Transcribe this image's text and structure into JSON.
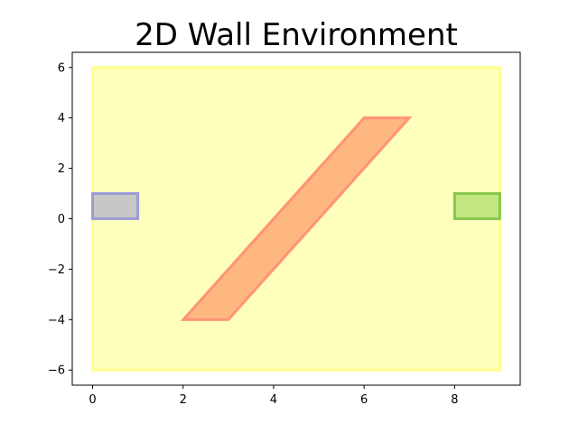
{
  "chart_data": {
    "type": "polygon",
    "title": "2D Wall Environment",
    "xlabel": "",
    "ylabel": "",
    "xlim": [
      -0.45,
      9.45
    ],
    "ylim": [
      -6.6,
      6.6
    ],
    "xticks": [
      0,
      2,
      4,
      6,
      8
    ],
    "yticks": [
      -6,
      -4,
      -2,
      0,
      2,
      4,
      6
    ],
    "xtick_labels": [
      "0",
      "2",
      "4",
      "6",
      "8"
    ],
    "ytick_labels": [
      "−6",
      "−4",
      "−2",
      "0",
      "2",
      "4",
      "6"
    ],
    "grid": false,
    "regions": [
      {
        "role": "environment",
        "points": [
          [
            0,
            -6
          ],
          [
            9,
            -6
          ],
          [
            9,
            6
          ],
          [
            0,
            6
          ]
        ],
        "fill": "#ffff99",
        "fill_opacity": 0.65,
        "stroke": "#ffff80"
      },
      {
        "role": "start",
        "points": [
          [
            0,
            0
          ],
          [
            1,
            0
          ],
          [
            1,
            1
          ],
          [
            0,
            1
          ]
        ],
        "fill": "#9999cc",
        "fill_opacity": 0.55,
        "stroke": "#8f8fd9"
      },
      {
        "role": "goal",
        "points": [
          [
            8,
            0
          ],
          [
            9,
            0
          ],
          [
            9,
            1
          ],
          [
            8,
            1
          ]
        ],
        "fill": "#8fd14f",
        "fill_opacity": 0.55,
        "stroke": "#7ac043"
      },
      {
        "role": "wall",
        "points": [
          [
            2,
            -4
          ],
          [
            3,
            -4
          ],
          [
            7,
            4
          ],
          [
            6,
            4
          ]
        ],
        "fill": "#ff9966",
        "fill_opacity": 0.7,
        "stroke": "#ff8870"
      }
    ]
  }
}
